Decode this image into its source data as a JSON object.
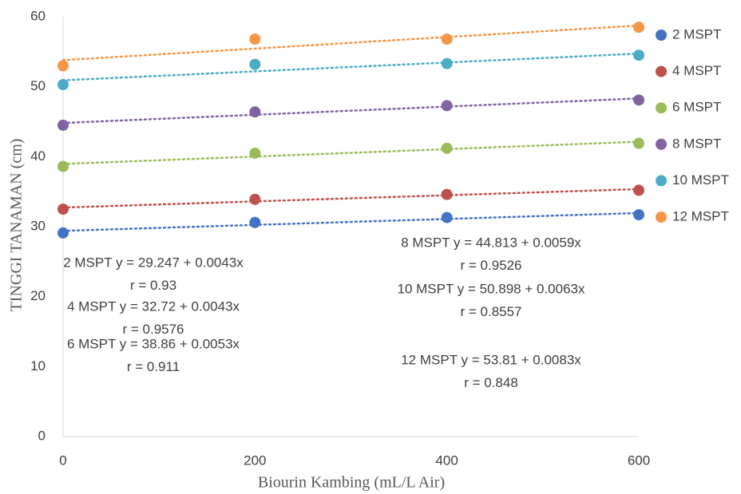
{
  "chart_data": {
    "type": "scatter",
    "x_label": "Biourin Kambing (mL/L Air)",
    "y_label": "TINGGI TANAMAN (cm)",
    "x": [
      0,
      200,
      400,
      600
    ],
    "series": [
      {
        "name": "2 MSPT",
        "color": "#4472c4",
        "values": [
          29.1,
          30.6,
          31.3,
          31.7
        ]
      },
      {
        "name": "4 MSPT",
        "color": "#c0504d",
        "values": [
          32.5,
          33.9,
          34.6,
          35.2
        ]
      },
      {
        "name": "6 MSPT",
        "color": "#9bbb59",
        "values": [
          38.6,
          40.5,
          41.2,
          41.9
        ]
      },
      {
        "name": "8 MSPT",
        "color": "#8064a2",
        "values": [
          44.5,
          46.4,
          47.3,
          48.1
        ]
      },
      {
        "name": "10 MSPT",
        "color": "#4bacc6",
        "values": [
          50.3,
          53.2,
          53.3,
          54.5
        ]
      },
      {
        "name": "12 MSPT",
        "color": "#f79646",
        "values": [
          53.0,
          56.8,
          56.8,
          58.5
        ]
      }
    ],
    "xlim": [
      0,
      600
    ],
    "xticks": [
      0,
      200,
      400,
      600
    ],
    "ylim": [
      0,
      60
    ],
    "yticks": [
      0,
      10,
      20,
      30,
      40,
      50,
      60
    ],
    "trendline": true,
    "grid": false,
    "legend": "right",
    "annotations": [
      [
        "2 MSPT y = 29.247 + 0.0043x",
        "r = 0.93"
      ],
      [
        "4 MSPT y = 32.72 + 0.0043x",
        "r = 0.9576"
      ],
      [
        "6 MSPT y = 38.86 + 0.0053x",
        "r = 0.911"
      ],
      [
        "8 MSPT y = 44.813 + 0.0059x",
        "r = 0.9526"
      ],
      [
        "10 MSPT y = 50.898 + 0.0063x",
        "r = 0.8557"
      ],
      [
        "12 MSPT y = 53.81 + 0.0083x",
        "r = 0.848"
      ]
    ]
  }
}
